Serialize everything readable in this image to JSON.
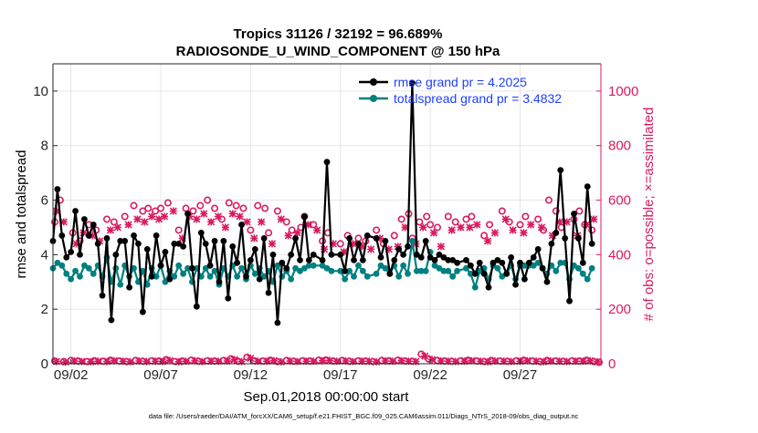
{
  "chart_data": {
    "type": "line",
    "title_line1": "Tropics 31126 / 32192 = 96.689%",
    "title_line2": "RADIOSONDE_U_WIND_COMPONENT @ 150 hPa",
    "xlabel": "Sep.01,2018 00:00:00 start",
    "ylabel_left": "rmse and totalspread",
    "ylabel_right": "# of obs: o=possible; ×=assimilated",
    "footer": "data file: /Users/raeder/DAI/ATM_forcXX/CAM6_setup/f.e21.FHIST_BGC.f09_025.CAM6assim.011/Diags_NTrS_2018-09/obs_diag_output.nc",
    "xlim": [
      1,
      31.5
    ],
    "ylim_left": [
      0,
      11
    ],
    "ylim_right": [
      0,
      1100
    ],
    "x_ticks": [
      {
        "x": 2,
        "label": "09/02"
      },
      {
        "x": 7,
        "label": "09/07"
      },
      {
        "x": 12,
        "label": "09/12"
      },
      {
        "x": 17,
        "label": "09/17"
      },
      {
        "x": 22,
        "label": "09/22"
      },
      {
        "x": 27,
        "label": "09/27"
      }
    ],
    "y_ticks_left": [
      0,
      2,
      4,
      6,
      8,
      10
    ],
    "y_ticks_right": [
      0,
      200,
      400,
      600,
      800,
      1000
    ],
    "colors": {
      "rmse": "#000000",
      "spread": "#008080",
      "obs": "#d81b60",
      "legend_text": "#1f3fff",
      "grid": "#e6e6e6"
    },
    "legend": {
      "rmse_label": "rmse grand pr = 4.2025",
      "spread_label": "totalspread grand pr = 3.4832"
    },
    "series": [
      {
        "name": "rmse",
        "x": [
          1.0,
          1.25,
          1.5,
          1.75,
          2.0,
          2.25,
          2.5,
          2.75,
          3.0,
          3.25,
          3.5,
          3.75,
          4.0,
          4.25,
          4.5,
          4.75,
          5.0,
          5.25,
          5.5,
          5.75,
          6.0,
          6.25,
          6.5,
          6.75,
          7.0,
          7.25,
          7.5,
          7.75,
          8.0,
          8.25,
          8.5,
          8.75,
          9.0,
          9.25,
          9.5,
          9.75,
          10.0,
          10.25,
          10.5,
          10.75,
          11.0,
          11.25,
          11.5,
          11.75,
          12.0,
          12.25,
          12.5,
          12.75,
          13.0,
          13.25,
          13.5,
          13.75,
          14.0,
          14.25,
          14.5,
          14.75,
          15.0,
          15.25,
          15.5,
          16.0,
          16.25,
          16.5,
          17.0,
          17.25,
          17.5,
          17.75,
          18.0,
          18.25,
          18.5,
          19.0,
          19.25,
          19.5,
          19.75,
          20.0,
          20.25,
          20.5,
          20.75,
          21.0,
          21.25,
          21.5,
          21.75,
          22.0,
          22.25,
          22.5,
          22.75,
          23.0,
          23.25,
          23.5,
          24.0,
          24.25,
          24.5,
          24.75,
          25.0,
          25.25,
          25.5,
          25.75,
          26.0,
          26.25,
          26.5,
          26.75,
          27.0,
          27.25,
          27.5,
          27.75,
          28.0,
          28.25,
          28.5,
          28.75,
          29.0,
          29.25,
          29.5,
          29.75,
          30.0,
          30.25,
          30.5,
          30.75,
          31.0
        ],
        "y": [
          4.5,
          6.4,
          4.7,
          3.9,
          4.1,
          5.6,
          4.0,
          5.3,
          4.7,
          5.1,
          4.4,
          2.5,
          4.6,
          1.6,
          4.0,
          4.5,
          4.5,
          2.8,
          4.7,
          4.4,
          1.9,
          4.2,
          3.2,
          4.7,
          3.6,
          4.1,
          3.1,
          4.4,
          4.4,
          4.3,
          5.5,
          3.5,
          2.1,
          4.8,
          4.4,
          3.6,
          4.5,
          3.0,
          4.5,
          2.4,
          4.3,
          3.7,
          5.1,
          3.2,
          3.8,
          4.2,
          3.1,
          4.6,
          2.6,
          4.0,
          1.5,
          3.7,
          3.5,
          4.0,
          4.6,
          3.8,
          5.4,
          3.8,
          4.0,
          3.8,
          7.4,
          4.0,
          4.0,
          3.4,
          4.6,
          3.8,
          4.4,
          3.8,
          4.7,
          4.6,
          3.9,
          4.5,
          3.3,
          3.8,
          4.2,
          4.0,
          4.3,
          10.3,
          4.0,
          3.9,
          4.5,
          3.9,
          3.8,
          4.0,
          3.9,
          3.8,
          3.8,
          3.7,
          3.8,
          3.6,
          3.3,
          3.7,
          3.3,
          2.8,
          3.7,
          3.8,
          3.7,
          3.3,
          3.9,
          2.9,
          3.7,
          3.1,
          3.7,
          3.9,
          4.2,
          3.5,
          3.0,
          4.4,
          4.8,
          7.1,
          4.6,
          2.3,
          5.5,
          4.6,
          3.7,
          6.5,
          4.4
        ]
      },
      {
        "name": "totalspread",
        "x": [
          1.0,
          1.25,
          1.5,
          1.75,
          2.0,
          2.25,
          2.5,
          2.75,
          3.0,
          3.25,
          3.5,
          3.75,
          4.0,
          4.25,
          4.5,
          4.75,
          5.0,
          5.25,
          5.5,
          5.75,
          6.0,
          6.25,
          6.5,
          6.75,
          7.0,
          7.25,
          7.5,
          7.75,
          8.0,
          8.25,
          8.5,
          8.75,
          9.0,
          9.25,
          9.5,
          9.75,
          10.0,
          10.25,
          10.5,
          10.75,
          11.0,
          11.25,
          11.5,
          11.75,
          12.0,
          12.25,
          12.5,
          12.75,
          13.0,
          13.25,
          13.5,
          13.75,
          14.0,
          14.25,
          14.5,
          14.75,
          15.0,
          15.25,
          15.5,
          16.0,
          16.25,
          16.5,
          17.0,
          17.25,
          17.5,
          17.75,
          18.0,
          18.25,
          18.5,
          19.0,
          19.25,
          19.5,
          19.75,
          20.0,
          20.25,
          20.5,
          20.75,
          21.0,
          21.25,
          21.5,
          21.75,
          22.0,
          22.25,
          22.5,
          22.75,
          23.0,
          23.25,
          23.5,
          24.0,
          24.25,
          24.5,
          24.75,
          25.0,
          25.25,
          25.5,
          25.75,
          26.0,
          26.25,
          26.5,
          26.75,
          27.0,
          27.25,
          27.5,
          27.75,
          28.0,
          28.25,
          28.5,
          28.75,
          29.0,
          29.25,
          29.5,
          29.75,
          30.0,
          30.25,
          30.5,
          30.75,
          31.0
        ],
        "y": [
          3.5,
          3.7,
          3.6,
          3.3,
          3.1,
          3.4,
          3.2,
          3.6,
          3.5,
          3.3,
          3.6,
          3.2,
          3.9,
          3.0,
          3.5,
          2.9,
          3.6,
          3.2,
          3.5,
          3.0,
          3.4,
          2.9,
          3.5,
          3.2,
          3.6,
          3.0,
          3.4,
          3.2,
          3.6,
          3.3,
          3.5,
          3.0,
          3.5,
          3.2,
          3.5,
          3.2,
          3.4,
          2.9,
          3.5,
          3.2,
          3.6,
          3.2,
          3.5,
          3.1,
          3.6,
          3.3,
          3.5,
          3.2,
          3.4,
          3.0,
          3.6,
          3.2,
          3.4,
          3.1,
          3.5,
          3.4,
          3.5,
          3.6,
          3.6,
          3.6,
          3.5,
          3.4,
          3.4,
          3.1,
          3.4,
          3.2,
          3.6,
          3.4,
          3.2,
          3.3,
          3.6,
          3.5,
          3.3,
          3.6,
          3.2,
          3.6,
          3.3,
          4.5,
          3.4,
          3.4,
          3.4,
          4.1,
          3.6,
          3.5,
          3.4,
          3.4,
          3.2,
          3.4,
          3.5,
          3.3,
          2.8,
          3.4,
          3.5,
          3.1,
          3.6,
          3.5,
          3.2,
          3.3,
          3.6,
          3.1,
          3.6,
          3.6,
          3.6,
          3.6,
          3.7,
          3.5,
          3.3,
          3.6,
          3.4,
          3.7,
          3.7,
          3.1,
          3.6,
          3.5,
          3.3,
          3.1,
          3.5
        ]
      }
    ],
    "obs_possible": {
      "x": [
        1.1,
        1.4,
        2.1,
        2.5,
        3.0,
        3.4,
        4.0,
        4.4,
        5.0,
        5.5,
        6.0,
        6.3,
        6.7,
        7.0,
        7.4,
        8.0,
        8.4,
        8.8,
        9.2,
        9.6,
        10.0,
        10.4,
        10.8,
        11.2,
        11.6,
        12.0,
        12.4,
        12.8,
        13.0,
        13.5,
        14.0,
        14.3,
        14.8,
        15.0,
        15.5,
        16.0,
        16.3,
        17.0,
        17.4,
        18.0,
        18.4,
        19.0,
        19.4,
        20.0,
        20.4,
        20.8,
        21.0,
        21.4,
        21.8,
        22.0,
        22.4,
        23.0,
        23.4,
        24.0,
        24.3,
        25.0,
        25.3,
        26.0,
        26.4,
        27.0,
        27.3,
        28.0,
        28.3,
        28.6,
        29.0,
        29.3,
        30.0,
        30.3,
        30.6,
        31.0
      ],
      "y": [
        520,
        600,
        480,
        450,
        510,
        490,
        530,
        520,
        540,
        580,
        560,
        570,
        560,
        570,
        590,
        490,
        570,
        560,
        580,
        600,
        570,
        530,
        590,
        580,
        570,
        490,
        580,
        570,
        480,
        560,
        520,
        490,
        500,
        540,
        510,
        450,
        480,
        440,
        470,
        460,
        450,
        490,
        440,
        470,
        530,
        550,
        460,
        520,
        540,
        510,
        500,
        540,
        520,
        530,
        540,
        470,
        510,
        560,
        520,
        510,
        540,
        530,
        490,
        600,
        560,
        500,
        530,
        560,
        510,
        490
      ]
    },
    "obs_assimilated": {
      "x": [
        1.2,
        1.6,
        2.3,
        2.7,
        3.2,
        3.6,
        4.2,
        4.6,
        5.2,
        5.7,
        6.1,
        6.5,
        6.9,
        7.2,
        7.7,
        8.2,
        8.6,
        9.0,
        9.4,
        9.8,
        10.2,
        10.6,
        11.0,
        11.4,
        11.8,
        12.2,
        12.6,
        13.2,
        13.7,
        14.1,
        14.6,
        15.2,
        15.7,
        16.1,
        16.6,
        17.2,
        17.7,
        18.2,
        18.7,
        19.2,
        19.7,
        20.2,
        20.6,
        21.2,
        21.6,
        22.2,
        22.6,
        23.2,
        23.7,
        24.2,
        24.6,
        25.2,
        25.6,
        26.2,
        26.6,
        27.2,
        27.6,
        28.2,
        28.8,
        29.2,
        29.6,
        30.2,
        30.7,
        31.1
      ],
      "y": [
        560,
        520,
        440,
        480,
        470,
        450,
        490,
        500,
        510,
        530,
        520,
        540,
        530,
        540,
        560,
        460,
        540,
        530,
        550,
        520,
        540,
        500,
        550,
        540,
        520,
        460,
        520,
        440,
        530,
        470,
        480,
        510,
        490,
        420,
        440,
        410,
        440,
        430,
        420,
        460,
        420,
        430,
        500,
        440,
        500,
        480,
        430,
        490,
        500,
        500,
        510,
        450,
        480,
        530,
        490,
        480,
        510,
        500,
        470,
        520,
        520,
        470,
        510,
        530
      ]
    },
    "obs_possible_low": {
      "x": [
        1.1,
        1.6,
        2.0,
        2.4,
        2.9,
        3.3,
        3.8,
        4.2,
        4.7,
        5.1,
        5.6,
        6.0,
        6.5,
        6.9,
        7.3,
        7.8,
        8.2,
        8.7,
        9.1,
        9.6,
        10.0,
        10.5,
        10.9,
        11.3,
        11.8,
        12.2,
        12.7,
        13.1,
        13.5,
        14.0,
        14.4,
        14.9,
        15.3,
        15.8,
        16.2,
        16.6,
        17.1,
        17.5,
        18.0,
        18.4,
        18.8,
        19.3,
        19.7,
        20.2,
        20.6,
        21.0,
        21.5,
        21.9,
        22.4,
        22.8,
        23.2,
        23.7,
        24.1,
        24.6,
        25.0,
        25.4,
        25.9,
        26.3,
        26.8,
        27.2,
        27.7,
        28.1,
        28.5,
        29.0,
        29.4,
        29.9,
        30.3,
        30.7,
        31.1,
        31.4
      ],
      "y": [
        10,
        8,
        12,
        10,
        8,
        11,
        9,
        13,
        10,
        8,
        12,
        9,
        11,
        10,
        15,
        8,
        10,
        13,
        9,
        11,
        10,
        12,
        18,
        9,
        24,
        11,
        10,
        13,
        8,
        12,
        9,
        11,
        10,
        13,
        14,
        10,
        12,
        9,
        11,
        10,
        8,
        12,
        11,
        13,
        10,
        9,
        35,
        18,
        12,
        10,
        9,
        11,
        13,
        10,
        8,
        12,
        10,
        9,
        11,
        13,
        10,
        8,
        12,
        10,
        9,
        11,
        10,
        13,
        8,
        5
      ]
    },
    "obs_assimilated_low": {
      "x": [
        1.2,
        1.7,
        2.2,
        2.6,
        3.1,
        3.5,
        4.0,
        4.4,
        4.9,
        5.3,
        5.8,
        6.2,
        6.7,
        7.1,
        7.5,
        8.0,
        8.4,
        8.9,
        9.3,
        9.8,
        10.2,
        10.7,
        11.1,
        11.5,
        12.0,
        12.4,
        12.9,
        13.3,
        13.7,
        14.2,
        14.6,
        15.1,
        15.5,
        16.0,
        16.4,
        16.8,
        17.3,
        17.7,
        18.2,
        18.6,
        19.0,
        19.5,
        19.9,
        20.4,
        20.8,
        21.2,
        21.7,
        22.1,
        22.6,
        23.0,
        23.4,
        23.9,
        24.3,
        24.8,
        25.2,
        25.6,
        26.1,
        26.5,
        27.0,
        27.4,
        27.9,
        28.3,
        28.7,
        29.2,
        29.6,
        30.1,
        30.5,
        30.9,
        31.3
      ],
      "y": [
        8,
        6,
        10,
        8,
        7,
        9,
        8,
        11,
        9,
        7,
        10,
        8,
        9,
        8,
        12,
        7,
        9,
        11,
        8,
        9,
        9,
        10,
        15,
        8,
        20,
        9,
        9,
        11,
        7,
        10,
        8,
        9,
        9,
        11,
        12,
        9,
        10,
        8,
        9,
        9,
        7,
        10,
        9,
        11,
        9,
        8,
        28,
        15,
        10,
        9,
        8,
        9,
        11,
        9,
        7,
        10,
        9,
        8,
        9,
        11,
        9,
        7,
        10,
        9,
        8,
        9,
        9,
        11,
        7
      ]
    }
  }
}
